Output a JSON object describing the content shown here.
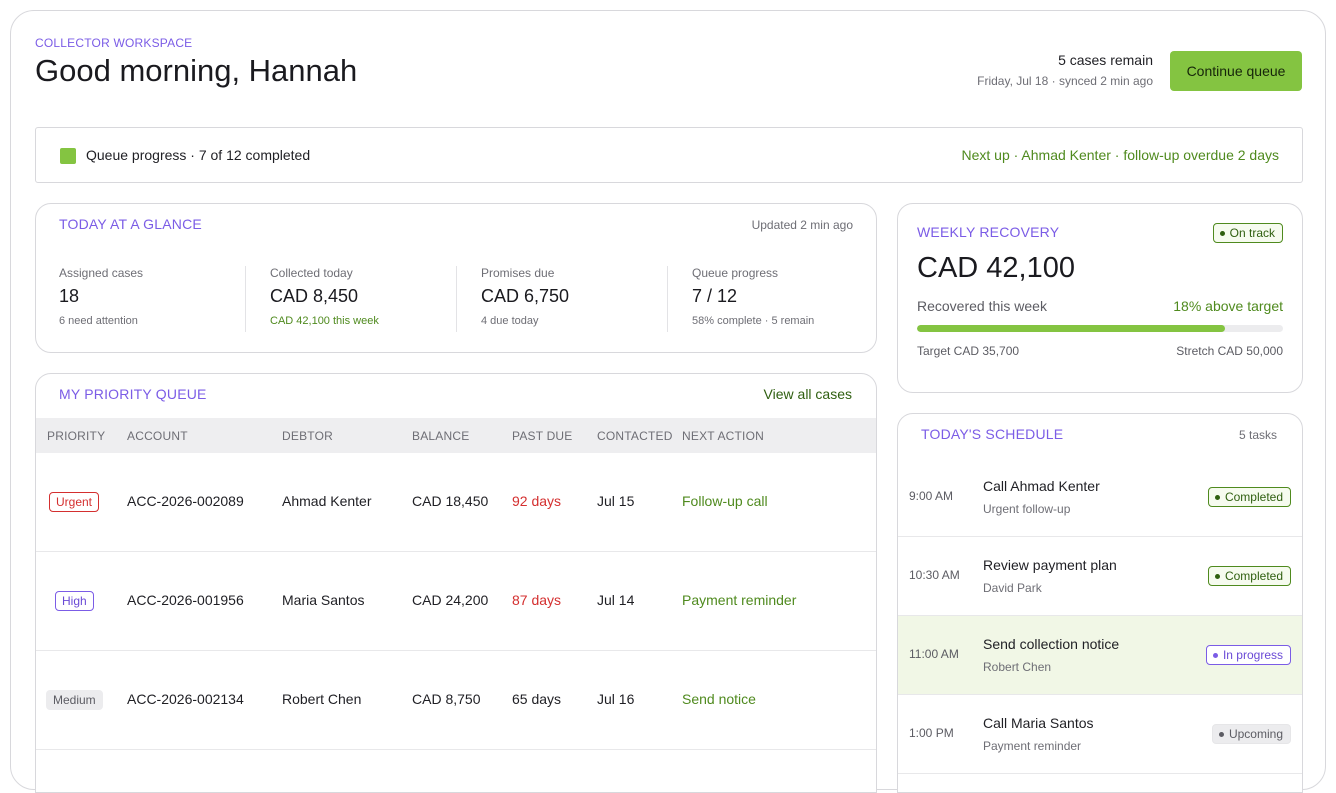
{
  "header": {
    "eyebrow": "COLLECTOR WORKSPACE",
    "greeting": "Good morning, Hannah",
    "cases_remain": "5 cases remain",
    "sync_line": "Friday, Jul 18 · synced 2 min ago",
    "continue_label": "Continue queue"
  },
  "progress_strip": {
    "text": "Queue progress · 7 of 12 completed",
    "next_up": "Next up · Ahmad Kenter · follow-up overdue 2 days"
  },
  "glance": {
    "title": "TODAY AT A GLANCE",
    "updated": "Updated 2 min ago",
    "stats": [
      {
        "label": "Assigned cases",
        "value": "18",
        "sub": "6 need attention"
      },
      {
        "label": "Collected today",
        "value": "CAD 8,450",
        "sub": "CAD 42,100 this week"
      },
      {
        "label": "Promises due",
        "value": "CAD 6,750",
        "sub": "4 due today"
      },
      {
        "label": "Queue progress",
        "value": "7 / 12",
        "sub": "58% complete · 5 remain"
      }
    ]
  },
  "weekly": {
    "title": "WEEKLY RECOVERY",
    "status": "On track",
    "amount": "CAD 42,100",
    "recovered_label": "Recovered this week",
    "above_target": "18% above target",
    "progress_fraction": 0.842,
    "target_label": "Target CAD 35,700",
    "stretch_label": "Stretch CAD 50,000"
  },
  "queue": {
    "title": "MY PRIORITY QUEUE",
    "view_all": "View all cases",
    "columns": [
      "PRIORITY",
      "ACCOUNT",
      "DEBTOR",
      "BALANCE",
      "PAST DUE",
      "CONTACTED",
      "NEXT ACTION"
    ],
    "rows": [
      {
        "priority": "Urgent",
        "account": "ACC-2026-002089",
        "debtor": "Ahmad Kenter",
        "balance": "CAD 18,450",
        "past_due": "92 days",
        "contacted": "Jul 15",
        "next_action": "Follow-up call"
      },
      {
        "priority": "High",
        "account": "ACC-2026-001956",
        "debtor": "Maria Santos",
        "balance": "CAD 24,200",
        "past_due": "87 days",
        "contacted": "Jul 14",
        "next_action": "Payment reminder"
      },
      {
        "priority": "Medium",
        "account": "ACC-2026-002134",
        "debtor": "Robert Chen",
        "balance": "CAD 8,750",
        "past_due": "65 days",
        "contacted": "Jul 16",
        "next_action": "Send notice"
      }
    ]
  },
  "schedule": {
    "title": "TODAY'S SCHEDULE",
    "count": "5 tasks",
    "items": [
      {
        "time": "9:00 AM",
        "title": "Call Ahmad Kenter",
        "sub": "Urgent follow-up",
        "status": "Completed"
      },
      {
        "time": "10:30 AM",
        "title": "Review payment plan",
        "sub": "David Park",
        "status": "Completed"
      },
      {
        "time": "11:00 AM",
        "title": "Send collection notice",
        "sub": "Robert Chen",
        "status": "In progress"
      },
      {
        "time": "1:00 PM",
        "title": "Call Maria Santos",
        "sub": "Payment reminder",
        "status": "Upcoming"
      }
    ]
  },
  "colors": {
    "accent_purple": "#7b5ce6",
    "brand_green": "#84c441",
    "text_green": "#4f8a1e",
    "danger_red": "#d42f2f"
  }
}
